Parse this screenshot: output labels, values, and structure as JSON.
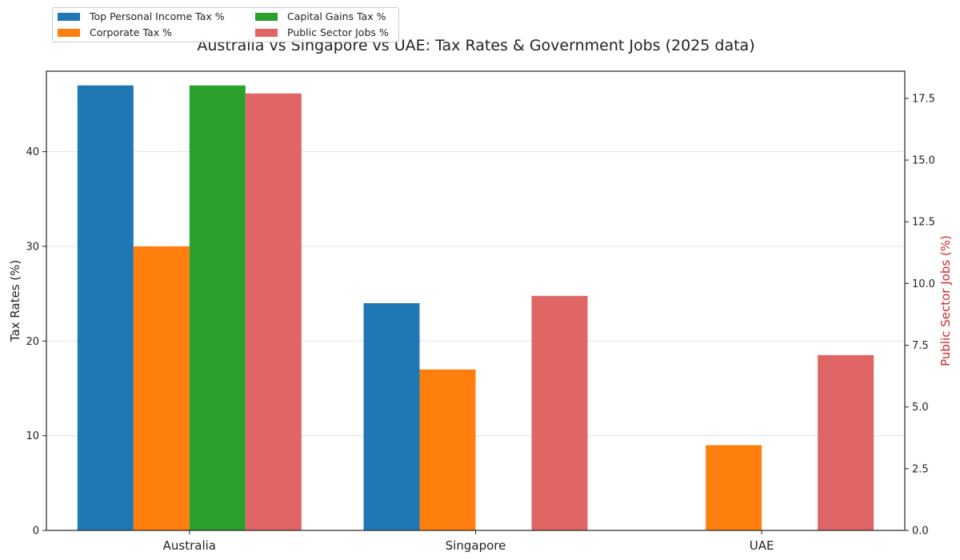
{
  "chart_data": {
    "type": "bar",
    "title": "Australia vs Singapore vs UAE: Tax Rates & Government Jobs (2025 data)",
    "categories": [
      "Australia",
      "Singapore",
      "UAE"
    ],
    "left_axis": {
      "label": "Tax Rates (%)",
      "ylim": [
        0,
        48.5
      ],
      "ticks": [
        0,
        10,
        20,
        30,
        40
      ],
      "tick_labels": [
        "0",
        "10",
        "20",
        "30",
        "40"
      ]
    },
    "right_axis": {
      "label": "Public Sector Jobs (%)",
      "label_color": "#d62728",
      "ylim": [
        0,
        18.6
      ],
      "ticks": [
        0,
        2.5,
        5,
        7.5,
        10,
        12.5,
        15,
        17.5
      ],
      "tick_labels": [
        "0.0",
        "2.5",
        "5.0",
        "7.5",
        "10.0",
        "12.5",
        "15.0",
        "17.5"
      ]
    },
    "grid": "horizontal",
    "legend_position": "top-left",
    "series": [
      {
        "name": "Top Personal Income Tax %",
        "axis": "left",
        "color": "#1f77b4",
        "values": [
          47,
          24,
          0
        ]
      },
      {
        "name": "Corporate Tax %",
        "axis": "left",
        "color": "#ff7f0e",
        "values": [
          30,
          17,
          9
        ]
      },
      {
        "name": "Capital Gains Tax %",
        "axis": "left",
        "color": "#2ca02c",
        "values": [
          47,
          0,
          0
        ]
      },
      {
        "name": "Public Sector Jobs %",
        "axis": "right",
        "color": "#e06666",
        "values": [
          17.7,
          9.5,
          7.1
        ]
      }
    ]
  }
}
